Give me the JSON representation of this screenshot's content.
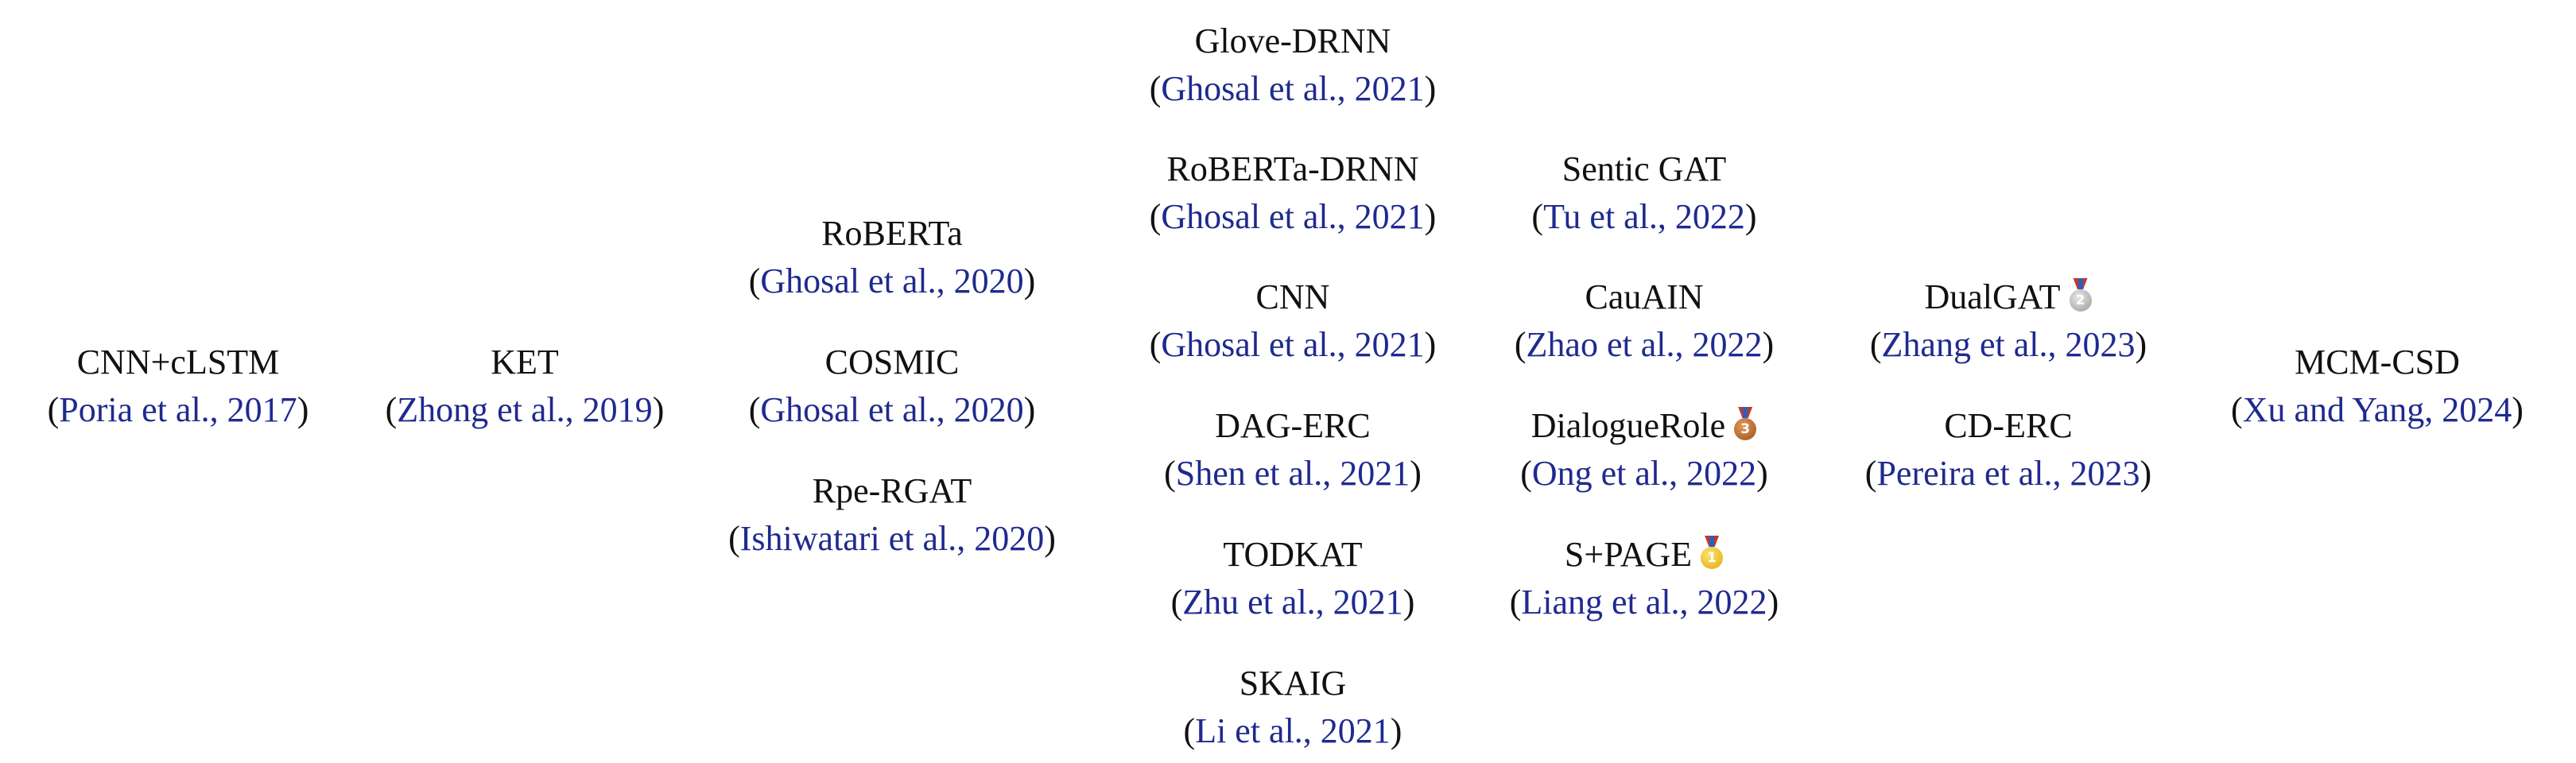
{
  "columns": [
    {
      "items": [
        {
          "name": "CNN+cLSTM",
          "ref": "Poria et al., 2017"
        }
      ]
    },
    {
      "items": [
        {
          "name": "KET",
          "ref": "Zhong et al., 2019"
        }
      ]
    },
    {
      "items": [
        {
          "name": "RoBERTa",
          "ref": "Ghosal et al., 2020"
        },
        {
          "name": "COSMIC",
          "ref": "Ghosal et al., 2020"
        },
        {
          "name": "Rpe-RGAT",
          "ref": "Ishiwatari et al., 2020"
        }
      ]
    },
    {
      "items": [
        {
          "name": "Glove-DRNN",
          "ref": "Ghosal et al., 2021"
        },
        {
          "name": "RoBERTa-DRNN",
          "ref": "Ghosal et al., 2021"
        },
        {
          "name": "CNN",
          "ref": "Ghosal et al., 2021"
        },
        {
          "name": "DAG-ERC",
          "ref": "Shen et al., 2021"
        },
        {
          "name": "TODKAT",
          "ref": "Zhu et al., 2021"
        },
        {
          "name": "SKAIG",
          "ref": "Li et al., 2021"
        }
      ]
    },
    {
      "items": [
        {
          "name": "Sentic GAT",
          "ref": "Tu et al., 2022"
        },
        {
          "name": "CauAIN",
          "ref": "Zhao et al., 2022"
        },
        {
          "name": "DialogueRole",
          "ref": "Ong et al., 2022",
          "medal": "bronze",
          "medal_label": "3"
        },
        {
          "name": "S+PAGE",
          "ref": "Liang et al., 2022",
          "medal": "gold",
          "medal_label": "1"
        }
      ]
    },
    {
      "items": [
        {
          "name": "DualGAT",
          "ref": "Zhang et al., 2023",
          "medal": "silver",
          "medal_label": "2"
        },
        {
          "name": "CD-ERC",
          "ref": "Pereira et al., 2023"
        }
      ]
    },
    {
      "items": [
        {
          "name": "MCM-CSD",
          "ref": "Xu and Yang, 2024"
        }
      ]
    }
  ]
}
